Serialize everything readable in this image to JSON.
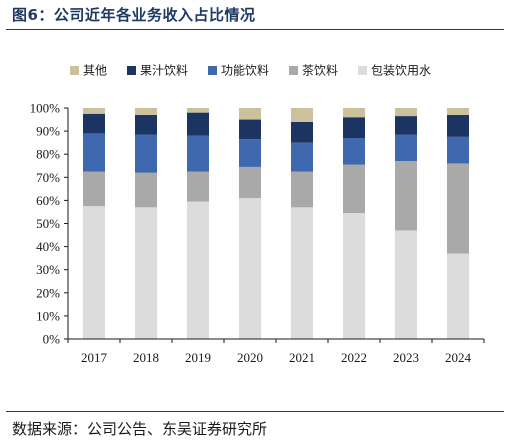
{
  "figure_title": "图6：公司近年各业务收入占比情况",
  "source_text": "数据来源：公司公告、东吴证券研究所",
  "chart_data": {
    "type": "bar",
    "stacked": true,
    "categories": [
      "2017",
      "2018",
      "2019",
      "2020",
      "2021",
      "2022",
      "2023",
      "2024"
    ],
    "ylim": [
      0,
      100
    ],
    "y_ticks": [
      "0%",
      "10%",
      "20%",
      "30%",
      "40%",
      "50%",
      "60%",
      "70%",
      "80%",
      "90%",
      "100%"
    ],
    "grid": false,
    "legend_position": "top",
    "legend_order": [
      "其他",
      "果汁饮料",
      "功能饮料",
      "茶饮料",
      "包装饮用水"
    ],
    "series": [
      {
        "name": "包装饮用水",
        "color": "#dcdcdc",
        "values": [
          57.5,
          57.0,
          59.5,
          61.0,
          57.0,
          54.5,
          47.0,
          37.0
        ]
      },
      {
        "name": "茶饮料",
        "color": "#a9a9a9",
        "values": [
          15.0,
          15.0,
          13.0,
          13.5,
          15.5,
          21.0,
          30.0,
          39.0
        ]
      },
      {
        "name": "功能饮料",
        "color": "#3f68ae",
        "values": [
          16.5,
          16.5,
          15.5,
          12.0,
          12.5,
          11.5,
          11.5,
          11.5
        ]
      },
      {
        "name": "果汁饮料",
        "color": "#1c3461",
        "values": [
          8.5,
          8.5,
          10.0,
          8.5,
          9.0,
          9.0,
          8.0,
          9.5
        ]
      },
      {
        "name": "其他",
        "color": "#cbc19b",
        "values": [
          2.5,
          3.0,
          2.0,
          5.0,
          6.0,
          4.0,
          3.5,
          3.0
        ]
      }
    ]
  }
}
